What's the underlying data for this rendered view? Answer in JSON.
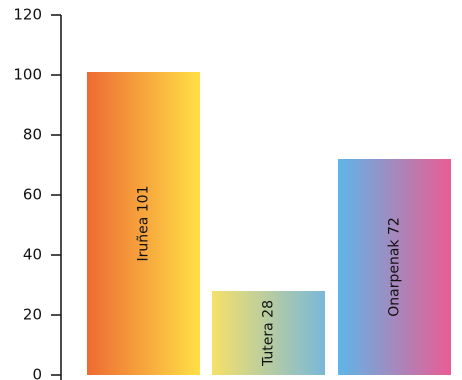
{
  "chart_data": {
    "type": "bar",
    "categories": [
      "Iruñea",
      "Tutera",
      "Onarpenak"
    ],
    "values": [
      101,
      28,
      72
    ],
    "data_labels": [
      "Iruñea 101",
      "Tutera 28",
      "Onarpenak 72"
    ],
    "title": "",
    "xlabel": "",
    "ylabel": "",
    "ylim": [
      0,
      120
    ],
    "yticks": [
      0,
      20,
      40,
      60,
      80,
      100,
      120
    ],
    "ytick_labels": [
      "0",
      "20",
      "40",
      "60",
      "80",
      "100",
      "120"
    ],
    "grid": false,
    "legend": "none",
    "bar_gradients": [
      [
        "#ee6a33",
        "#ffe046"
      ],
      [
        "#f6e06a",
        "#79b8d9"
      ],
      [
        "#5eb6e8",
        "#ea5c94"
      ]
    ],
    "axis_color": "#111111"
  }
}
